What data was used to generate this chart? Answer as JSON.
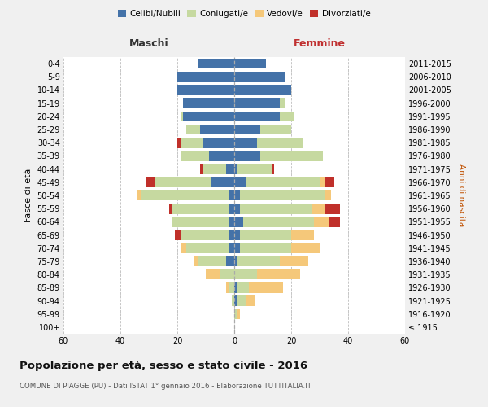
{
  "age_groups": [
    "100+",
    "95-99",
    "90-94",
    "85-89",
    "80-84",
    "75-79",
    "70-74",
    "65-69",
    "60-64",
    "55-59",
    "50-54",
    "45-49",
    "40-44",
    "35-39",
    "30-34",
    "25-29",
    "20-24",
    "15-19",
    "10-14",
    "5-9",
    "0-4"
  ],
  "birth_years": [
    "≤ 1915",
    "1916-1920",
    "1921-1925",
    "1926-1930",
    "1931-1935",
    "1936-1940",
    "1941-1945",
    "1946-1950",
    "1951-1955",
    "1956-1960",
    "1961-1965",
    "1966-1970",
    "1971-1975",
    "1976-1980",
    "1981-1985",
    "1986-1990",
    "1991-1995",
    "1996-2000",
    "2001-2005",
    "2006-2010",
    "2011-2015"
  ],
  "male": {
    "celibi": [
      0,
      0,
      0,
      0,
      0,
      3,
      2,
      2,
      2,
      2,
      2,
      8,
      3,
      9,
      11,
      12,
      18,
      18,
      20,
      20,
      13
    ],
    "coniugati": [
      0,
      0,
      1,
      2,
      5,
      10,
      15,
      17,
      20,
      20,
      31,
      20,
      8,
      10,
      8,
      5,
      1,
      0,
      0,
      0,
      0
    ],
    "vedovi": [
      0,
      0,
      0,
      1,
      5,
      1,
      2,
      0,
      0,
      0,
      1,
      0,
      0,
      0,
      0,
      0,
      0,
      0,
      0,
      0,
      0
    ],
    "divorziati": [
      0,
      0,
      0,
      0,
      0,
      0,
      0,
      2,
      0,
      1,
      0,
      3,
      1,
      0,
      1,
      0,
      0,
      0,
      0,
      0,
      0
    ]
  },
  "female": {
    "nubili": [
      0,
      0,
      1,
      1,
      0,
      1,
      2,
      2,
      3,
      2,
      2,
      4,
      1,
      9,
      8,
      9,
      16,
      16,
      20,
      18,
      11
    ],
    "coniugate": [
      0,
      1,
      3,
      4,
      8,
      15,
      18,
      18,
      25,
      25,
      30,
      26,
      12,
      22,
      16,
      11,
      5,
      2,
      0,
      0,
      0
    ],
    "vedove": [
      0,
      1,
      3,
      12,
      15,
      10,
      10,
      8,
      5,
      5,
      2,
      2,
      0,
      0,
      0,
      0,
      0,
      0,
      0,
      0,
      0
    ],
    "divorziate": [
      0,
      0,
      0,
      0,
      0,
      0,
      0,
      0,
      4,
      5,
      0,
      3,
      1,
      0,
      0,
      0,
      0,
      0,
      0,
      0,
      0
    ]
  },
  "colors": {
    "celibi": "#4472a8",
    "coniugati": "#c6d9a0",
    "vedovi": "#f5c87a",
    "divorziati": "#c0302a"
  },
  "xlim": 60,
  "title": "Popolazione per età, sesso e stato civile - 2016",
  "subtitle": "COMUNE DI PIAGGE (PU) - Dati ISTAT 1° gennaio 2016 - Elaborazione TUTTITALIA.IT",
  "ylabel_left": "Fasce di età",
  "ylabel_right": "Anni di nascita",
  "legend_labels": [
    "Celibi/Nubili",
    "Coniugati/e",
    "Vedovi/e",
    "Divorziati/e"
  ],
  "maschi_label": "Maschi",
  "femmine_label": "Femmine",
  "bg_color": "#f0f0f0",
  "plot_bg_color": "#ffffff"
}
